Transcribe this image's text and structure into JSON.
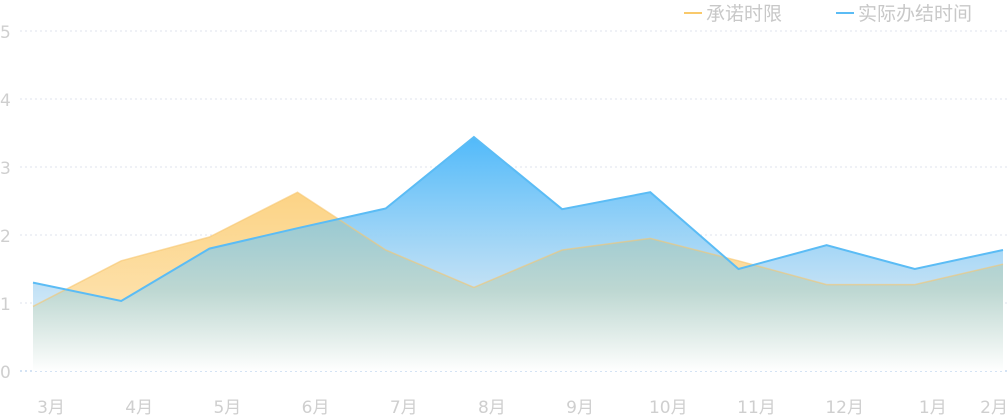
{
  "chart_data": {
    "type": "area",
    "categories": [
      "3月",
      "4月",
      "5月",
      "6月",
      "7月",
      "8月",
      "9月",
      "10月",
      "11月",
      "12月",
      "1月",
      "2月"
    ],
    "ylim": [
      0,
      5
    ],
    "yticks": [
      "0",
      "1",
      "2",
      "3",
      "4",
      "5"
    ],
    "grid": true,
    "legend_position": "top-right",
    "series": [
      {
        "name": "承诺时限",
        "color": "#f9c96b",
        "values": [
          0.95,
          1.62,
          1.97,
          2.63,
          1.78,
          1.23,
          1.78,
          1.95,
          1.62,
          1.27,
          1.27,
          1.57
        ]
      },
      {
        "name": "实际办结时间",
        "color": "#5bbcf5",
        "values": [
          1.3,
          1.03,
          1.8,
          2.1,
          2.39,
          3.44,
          2.38,
          2.63,
          1.5,
          1.85,
          1.5,
          1.78
        ]
      }
    ]
  }
}
